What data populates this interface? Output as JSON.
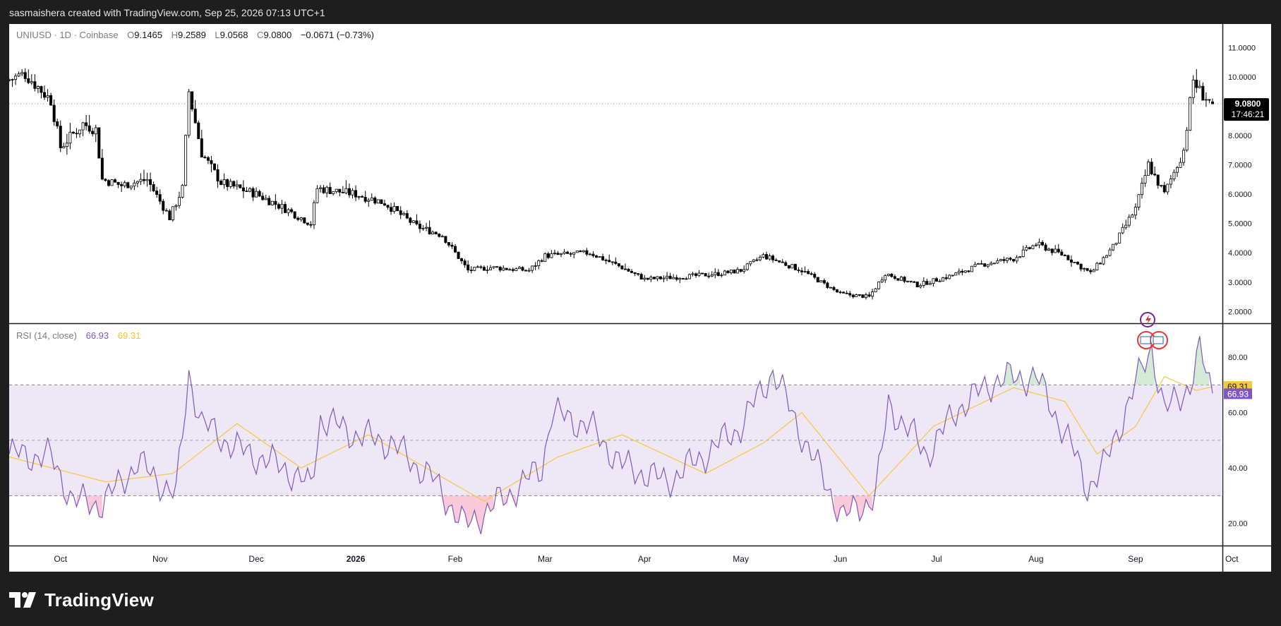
{
  "header": {
    "attribution": "sasmaishera created with TradingView.com, Sep 25, 2026 07:13 UTC+1"
  },
  "legend": {
    "symbol": "UNIUSD · 1D · Coinbase",
    "o_label": "O",
    "o": "9.1465",
    "h_label": "H",
    "h": "9.2589",
    "l_label": "L",
    "l": "9.0568",
    "c_label": "C",
    "c": "9.0800",
    "change": "−0.0671 (−0.73%)"
  },
  "price_axis": {
    "ticks": [
      "11.0000",
      "10.0000",
      "8.0000",
      "7.0000",
      "6.0000",
      "5.0000",
      "4.0000",
      "3.0000",
      "2.0000"
    ]
  },
  "last_price": {
    "value": "9.0800",
    "countdown": "17:46:21"
  },
  "rsi": {
    "title": "RSI (14, close)",
    "value": "66.93",
    "ma_value": "69.31",
    "ticks": [
      "80.00",
      "60.00",
      "40.00",
      "20.00"
    ]
  },
  "time_axis": {
    "labels": [
      "Oct",
      "Nov",
      "Dec",
      "2026",
      "Feb",
      "Mar",
      "Apr",
      "May",
      "Jun",
      "Jul",
      "Aug",
      "Sep",
      "Oct"
    ]
  },
  "footer": {
    "brand": "TradingView"
  },
  "colors": {
    "background": "#1e1e1e",
    "rsi_line": "#7e57c2",
    "rsi_ma": "#f5c842",
    "rsi_band": "#ede7f6",
    "candle": "#000000",
    "overbought_fill": "#c8e6c9",
    "oversold_fill": "#f8bbd0"
  },
  "chart_data": [
    {
      "type": "candlestick",
      "title": "UNIUSD · 1D · Coinbase",
      "x_range": [
        "2025-09-15",
        "2026-09-25"
      ],
      "ylim": [
        1.6,
        11.8
      ],
      "last": {
        "open": 9.1465,
        "high": 9.2589,
        "low": 9.0568,
        "close": 9.08,
        "change": -0.0671,
        "change_pct": -0.73
      },
      "keyframes": [
        {
          "date": "2025-09-15",
          "close": 9.9
        },
        {
          "date": "2025-09-20",
          "close": 10.1
        },
        {
          "date": "2025-09-28",
          "close": 9.2
        },
        {
          "date": "2025-10-01",
          "close": 7.6
        },
        {
          "date": "2025-10-08",
          "close": 8.4
        },
        {
          "date": "2025-10-12",
          "close": 8.2
        },
        {
          "date": "2025-10-14",
          "close": 6.5
        },
        {
          "date": "2025-10-20",
          "close": 6.3
        },
        {
          "date": "2025-10-28",
          "close": 6.5
        },
        {
          "date": "2025-11-04",
          "close": 5.2
        },
        {
          "date": "2025-11-08",
          "close": 6.2
        },
        {
          "date": "2025-11-10",
          "close": 9.5
        },
        {
          "date": "2025-11-14",
          "close": 7.4
        },
        {
          "date": "2025-11-20",
          "close": 6.4
        },
        {
          "date": "2025-12-01",
          "close": 6.0
        },
        {
          "date": "2025-12-10",
          "close": 5.5
        },
        {
          "date": "2025-12-18",
          "close": 5.0
        },
        {
          "date": "2025-12-20",
          "close": 6.2
        },
        {
          "date": "2026-01-01",
          "close": 6.0
        },
        {
          "date": "2026-01-10",
          "close": 5.7
        },
        {
          "date": "2026-01-20",
          "close": 4.9
        },
        {
          "date": "2026-01-28",
          "close": 4.6
        },
        {
          "date": "2026-02-05",
          "close": 3.4
        },
        {
          "date": "2026-02-12",
          "close": 3.5
        },
        {
          "date": "2026-02-24",
          "close": 3.4
        },
        {
          "date": "2026-03-01",
          "close": 3.9
        },
        {
          "date": "2026-03-15",
          "close": 4.0
        },
        {
          "date": "2026-03-25",
          "close": 3.5
        },
        {
          "date": "2026-04-01",
          "close": 3.1
        },
        {
          "date": "2026-04-15",
          "close": 3.2
        },
        {
          "date": "2026-04-25",
          "close": 3.3
        },
        {
          "date": "2026-05-01",
          "close": 3.4
        },
        {
          "date": "2026-05-08",
          "close": 3.9
        },
        {
          "date": "2026-05-20",
          "close": 3.4
        },
        {
          "date": "2026-06-01",
          "close": 2.6
        },
        {
          "date": "2026-06-10",
          "close": 2.5
        },
        {
          "date": "2026-06-15",
          "close": 3.3
        },
        {
          "date": "2026-06-25",
          "close": 2.9
        },
        {
          "date": "2026-07-05",
          "close": 3.2
        },
        {
          "date": "2026-07-15",
          "close": 3.6
        },
        {
          "date": "2026-07-25",
          "close": 3.8
        },
        {
          "date": "2026-08-01",
          "close": 4.3
        },
        {
          "date": "2026-08-10",
          "close": 3.9
        },
        {
          "date": "2026-08-18",
          "close": 3.3
        },
        {
          "date": "2026-08-25",
          "close": 4.2
        },
        {
          "date": "2026-09-01",
          "close": 5.5
        },
        {
          "date": "2026-09-05",
          "close": 7.0
        },
        {
          "date": "2026-09-10",
          "close": 6.0
        },
        {
          "date": "2026-09-16",
          "close": 7.5
        },
        {
          "date": "2026-09-19",
          "close": 9.9
        },
        {
          "date": "2026-09-21",
          "close": 9.5
        },
        {
          "date": "2026-09-25",
          "close": 9.08
        }
      ]
    },
    {
      "type": "line",
      "title": "RSI (14, close)",
      "ylim": [
        12,
        92
      ],
      "levels": [
        70,
        50,
        30
      ],
      "series": [
        {
          "name": "RSI",
          "last": 66.93,
          "points": [
            {
              "date": "2025-09-15",
              "y": 45
            },
            {
              "date": "2025-09-28",
              "y": 44
            },
            {
              "date": "2025-10-05",
              "y": 28
            },
            {
              "date": "2025-10-14",
              "y": 27
            },
            {
              "date": "2025-10-25",
              "y": 42
            },
            {
              "date": "2025-11-06",
              "y": 30
            },
            {
              "date": "2025-11-10",
              "y": 74
            },
            {
              "date": "2025-11-14",
              "y": 56
            },
            {
              "date": "2025-11-25",
              "y": 47
            },
            {
              "date": "2025-12-10",
              "y": 40
            },
            {
              "date": "2025-12-18",
              "y": 33
            },
            {
              "date": "2025-12-21",
              "y": 58
            },
            {
              "date": "2026-01-01",
              "y": 52
            },
            {
              "date": "2026-01-12",
              "y": 49
            },
            {
              "date": "2026-01-25",
              "y": 36
            },
            {
              "date": "2026-02-04",
              "y": 19
            },
            {
              "date": "2026-02-15",
              "y": 28
            },
            {
              "date": "2026-02-28",
              "y": 40
            },
            {
              "date": "2026-03-03",
              "y": 60
            },
            {
              "date": "2026-03-15",
              "y": 55
            },
            {
              "date": "2026-03-25",
              "y": 41
            },
            {
              "date": "2026-04-08",
              "y": 35
            },
            {
              "date": "2026-04-20",
              "y": 45
            },
            {
              "date": "2026-05-01",
              "y": 55
            },
            {
              "date": "2026-05-11",
              "y": 75
            },
            {
              "date": "2026-05-22",
              "y": 47
            },
            {
              "date": "2026-06-02",
              "y": 22
            },
            {
              "date": "2026-06-12",
              "y": 30
            },
            {
              "date": "2026-06-16",
              "y": 63
            },
            {
              "date": "2026-06-28",
              "y": 45
            },
            {
              "date": "2026-07-08",
              "y": 62
            },
            {
              "date": "2026-07-20",
              "y": 72
            },
            {
              "date": "2026-08-01",
              "y": 73
            },
            {
              "date": "2026-08-12",
              "y": 48
            },
            {
              "date": "2026-08-17",
              "y": 33
            },
            {
              "date": "2026-08-22",
              "y": 40
            },
            {
              "date": "2026-09-01",
              "y": 70
            },
            {
              "date": "2026-09-06",
              "y": 84
            },
            {
              "date": "2026-09-10",
              "y": 60
            },
            {
              "date": "2026-09-18",
              "y": 70
            },
            {
              "date": "2026-09-21",
              "y": 82
            },
            {
              "date": "2026-09-25",
              "y": 66.93
            }
          ]
        },
        {
          "name": "RSI-based MA",
          "last": 69.31,
          "points": [
            {
              "date": "2025-09-15",
              "y": 44
            },
            {
              "date": "2025-10-15",
              "y": 35
            },
            {
              "date": "2025-11-05",
              "y": 38
            },
            {
              "date": "2025-11-25",
              "y": 56
            },
            {
              "date": "2025-12-15",
              "y": 40
            },
            {
              "date": "2026-01-05",
              "y": 52
            },
            {
              "date": "2026-02-10",
              "y": 28
            },
            {
              "date": "2026-03-05",
              "y": 44
            },
            {
              "date": "2026-03-25",
              "y": 52
            },
            {
              "date": "2026-04-20",
              "y": 38
            },
            {
              "date": "2026-05-08",
              "y": 49
            },
            {
              "date": "2026-05-20",
              "y": 60
            },
            {
              "date": "2026-06-10",
              "y": 30
            },
            {
              "date": "2026-06-30",
              "y": 55
            },
            {
              "date": "2026-07-25",
              "y": 69
            },
            {
              "date": "2026-08-10",
              "y": 64
            },
            {
              "date": "2026-08-20",
              "y": 45
            },
            {
              "date": "2026-09-01",
              "y": 55
            },
            {
              "date": "2026-09-10",
              "y": 73
            },
            {
              "date": "2026-09-20",
              "y": 68
            },
            {
              "date": "2026-09-25",
              "y": 69.31
            }
          ]
        }
      ]
    }
  ]
}
